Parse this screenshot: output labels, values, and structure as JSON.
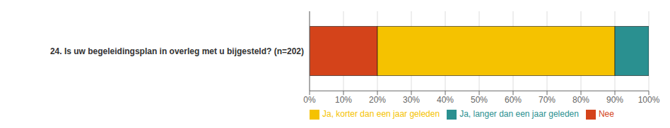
{
  "chart_data": {
    "type": "bar",
    "orientation": "horizontal",
    "stacked": true,
    "categories": [
      "24. Is uw begeleidingsplan in overleg met u bijgesteld? (n=202)"
    ],
    "series": [
      {
        "name": "Nee",
        "color": "#D4431A",
        "values": [
          20
        ]
      },
      {
        "name": "Ja, korter dan een jaar geleden",
        "color": "#F5C200",
        "values": [
          70
        ]
      },
      {
        "name": "Ja, langer dan een jaar geleden",
        "color": "#2A9090",
        "values": [
          10
        ]
      }
    ],
    "xlim": [
      0,
      100
    ],
    "xticks": [
      {
        "value": 0,
        "label": "0%"
      },
      {
        "value": 10,
        "label": "10%"
      },
      {
        "value": 20,
        "label": "20%"
      },
      {
        "value": 30,
        "label": "30%"
      },
      {
        "value": 40,
        "label": "40%"
      },
      {
        "value": 50,
        "label": "50%"
      },
      {
        "value": 60,
        "label": "60%"
      },
      {
        "value": 70,
        "label": "70%"
      },
      {
        "value": 80,
        "label": "80%"
      },
      {
        "value": 90,
        "label": "90%"
      },
      {
        "value": 100,
        "label": "100%"
      }
    ],
    "grid": true,
    "legend": "lower left"
  }
}
